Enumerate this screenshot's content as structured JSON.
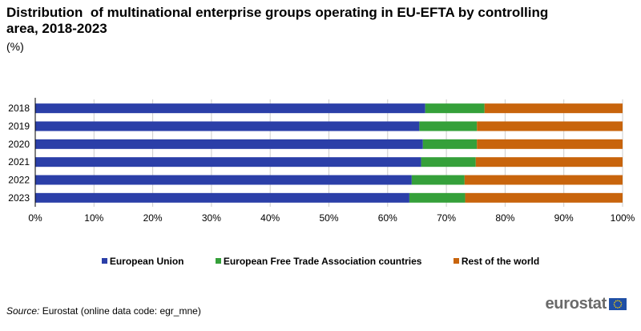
{
  "title": "Distribution  of multinational enterprise groups operating in EU-EFTA by controlling area, 2018-2023",
  "unit": "(%)",
  "legend": {
    "eu": "European Union",
    "efta": "European Free Trade Association countries",
    "row": "Rest of the world"
  },
  "source": {
    "label": "Source:",
    "text": " Eurostat (online data code: egr_mne)"
  },
  "logo": {
    "text": "eurostat",
    "flag_icon": "eu-flag-icon"
  },
  "colors": {
    "eu": "#2b3fa8",
    "efta": "#35a03a",
    "row": "#c8640c",
    "grid": "#cccccc"
  },
  "chart_data": {
    "type": "bar",
    "orientation": "horizontal",
    "stacked": true,
    "title": "Distribution  of multinational enterprise groups operating in EU-EFTA by controlling area, 2018-2023",
    "subtitle": "(%)",
    "categories": [
      "2018",
      "2019",
      "2020",
      "2021",
      "2022",
      "2023"
    ],
    "series": [
      {
        "name": "European Union",
        "values": [
          66.4,
          65.4,
          66.0,
          65.7,
          64.1,
          63.7
        ]
      },
      {
        "name": "European Free Trade Association countries",
        "values": [
          10.1,
          9.8,
          9.2,
          9.3,
          9.0,
          9.5
        ]
      },
      {
        "name": "Rest of the world",
        "values": [
          23.5,
          24.8,
          24.8,
          25.0,
          26.9,
          26.8
        ]
      }
    ],
    "xlim": [
      0,
      100
    ],
    "x_ticks": [
      "0%",
      "10%",
      "20%",
      "30%",
      "40%",
      "50%",
      "60%",
      "70%",
      "80%",
      "90%",
      "100%"
    ],
    "grid": true,
    "legend_position": "bottom"
  }
}
